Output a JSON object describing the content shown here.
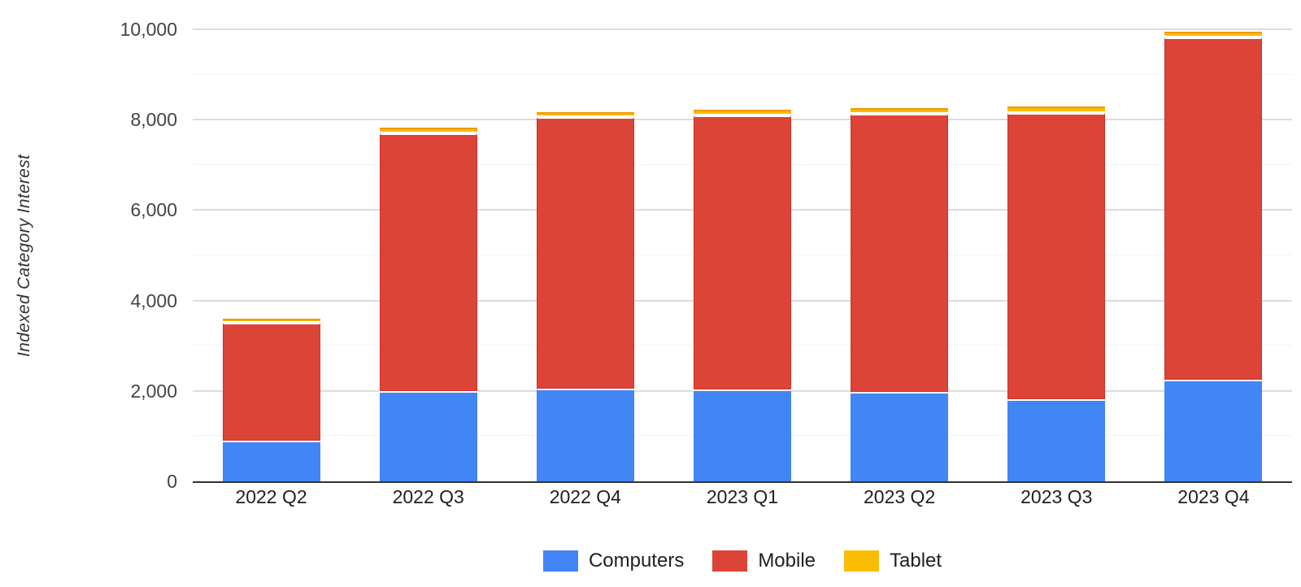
{
  "chart_data": {
    "type": "bar",
    "stacked": true,
    "title": "",
    "xlabel": "",
    "ylabel": "Indexed Category Interest",
    "categories": [
      "2022 Q2",
      "2022 Q3",
      "2022 Q4",
      "2023 Q1",
      "2023 Q2",
      "2023 Q3",
      "2023 Q4"
    ],
    "series": [
      {
        "name": "Computers",
        "color": "#4285f4",
        "values": [
          900,
          2000,
          2050,
          2025,
          1975,
          1825,
          2250
        ]
      },
      {
        "name": "Mobile",
        "color": "#db4437",
        "values": [
          2600,
          5700,
          6000,
          6075,
          6150,
          6325,
          7575
        ]
      },
      {
        "name": "Tablet",
        "color": "#fbbc04",
        "values": [
          100,
          125,
          125,
          125,
          125,
          150,
          125
        ]
      }
    ],
    "ylim": [
      0,
      10000
    ],
    "ytick_step": 2000,
    "minor_tick_step": 1000,
    "ytick_labels": [
      "0",
      "2,000",
      "4,000",
      "6,000",
      "8,000",
      "10,000"
    ],
    "grid": true,
    "legend_position": "bottom"
  }
}
